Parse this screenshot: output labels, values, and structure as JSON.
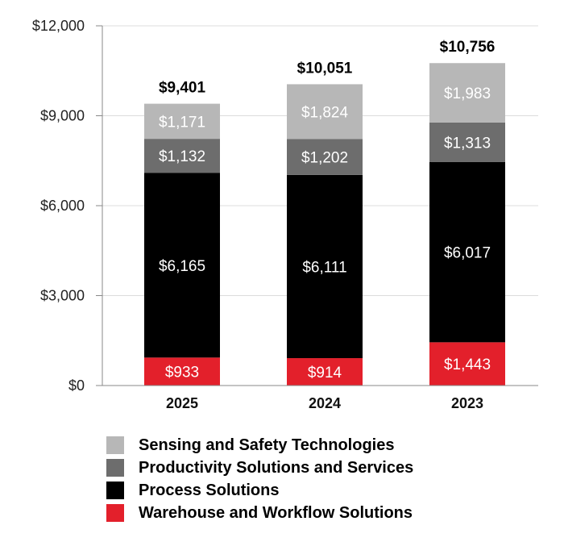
{
  "chart_data": {
    "type": "bar",
    "stacked": true,
    "categories": [
      "2025",
      "2024",
      "2023"
    ],
    "series": [
      {
        "name": "Warehouse and Workflow Solutions",
        "color": "#e3202b",
        "values": [
          933,
          914,
          1443
        ],
        "labels": [
          "$933",
          "$914",
          "$1,443"
        ]
      },
      {
        "name": "Process Solutions",
        "color": "#000000",
        "values": [
          6165,
          6111,
          6017
        ],
        "labels": [
          "$6,165",
          "$6,111",
          "$6,017"
        ]
      },
      {
        "name": "Productivity Solutions and Services",
        "color": "#6d6d6d",
        "values": [
          1132,
          1202,
          1313
        ],
        "labels": [
          "$1,132",
          "$1,202",
          "$1,313"
        ]
      },
      {
        "name": "Sensing and Safety Technologies",
        "color": "#b7b7b7",
        "values": [
          1171,
          1824,
          1983
        ],
        "labels": [
          "$1,171",
          "$1,824",
          "$1,983"
        ]
      }
    ],
    "totals": [
      9401,
      10051,
      10756
    ],
    "total_labels": [
      "$9,401",
      "$10,051",
      "$10,756"
    ],
    "ylim": [
      0,
      12000
    ],
    "yticks": [
      0,
      3000,
      6000,
      9000,
      12000
    ],
    "ytick_labels": [
      "$0",
      "$3,000",
      "$6,000",
      "$9,000",
      "$12,000"
    ],
    "grid": true,
    "legend_position": "bottom",
    "legend_order": [
      3,
      2,
      1,
      0
    ]
  }
}
